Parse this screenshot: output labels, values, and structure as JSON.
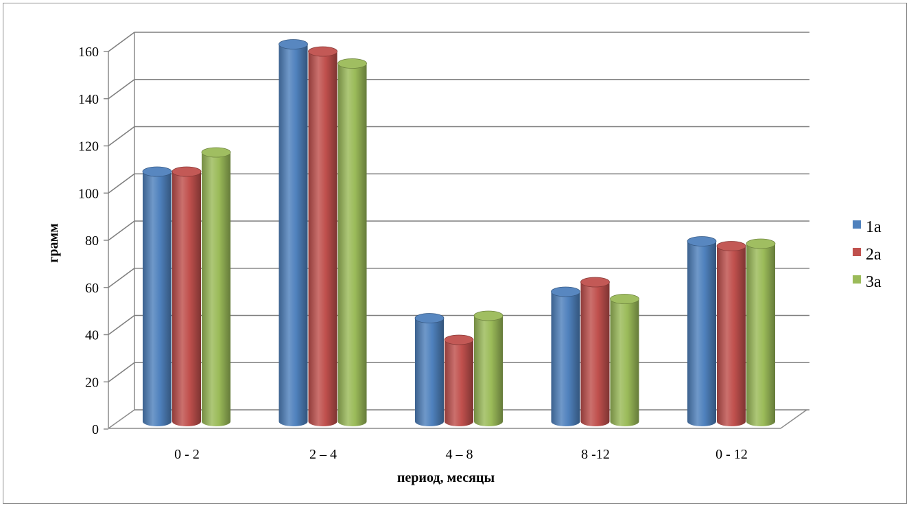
{
  "chart_data": {
    "type": "bar",
    "style": "3d-cylinder",
    "categories": [
      "0 - 2",
      "2 – 4",
      "4 – 8",
      "8 -12",
      "0 - 12"
    ],
    "series": [
      {
        "name": "1а",
        "values": [
          100,
          153,
          39,
          50,
          71
        ],
        "color": "#4f81bd"
      },
      {
        "name": "2а",
        "values": [
          100,
          150,
          30,
          54,
          69
        ],
        "color": "#c0504d"
      },
      {
        "name": "3а",
        "values": [
          108,
          145,
          40,
          47,
          70
        ],
        "color": "#9bbb59"
      }
    ],
    "xlabel": "период, месяцы",
    "ylabel": "грамм",
    "ylim": [
      0,
      160
    ],
    "yticks": [
      "0",
      "20",
      "40",
      "60",
      "80",
      "100",
      "120",
      "140",
      "160"
    ],
    "grid": true,
    "legend_position": "right"
  }
}
